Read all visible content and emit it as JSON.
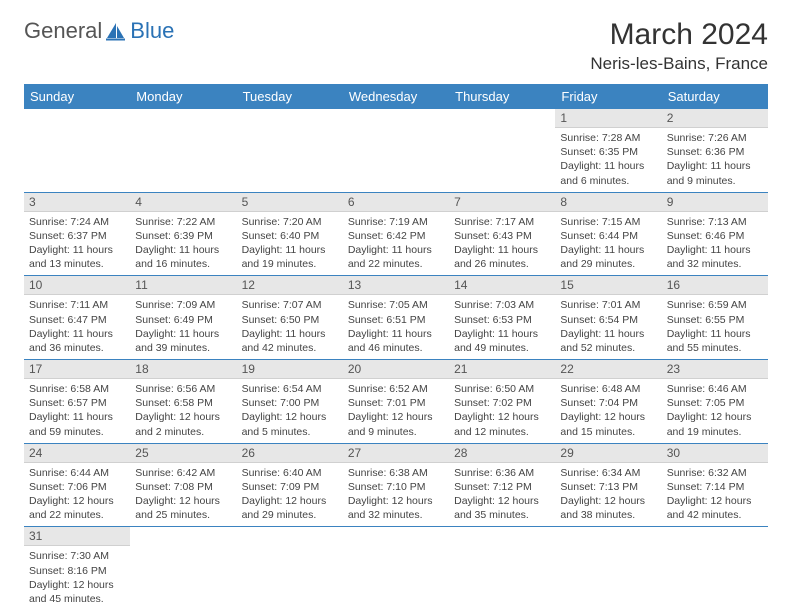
{
  "brand": {
    "part1": "General",
    "part2": "Blue"
  },
  "title": {
    "month": "March 2024",
    "location": "Neris-les-Bains, France"
  },
  "colors": {
    "header_bg": "#3b83c0",
    "row_border": "#3b83c0",
    "daynum_bg": "#e7e7e7"
  },
  "day_headers": [
    "Sunday",
    "Monday",
    "Tuesday",
    "Wednesday",
    "Thursday",
    "Friday",
    "Saturday"
  ],
  "weeks": [
    [
      null,
      null,
      null,
      null,
      null,
      {
        "n": "1",
        "sunrise": "7:28 AM",
        "sunset": "6:35 PM",
        "daylight": "11 hours and 6 minutes."
      },
      {
        "n": "2",
        "sunrise": "7:26 AM",
        "sunset": "6:36 PM",
        "daylight": "11 hours and 9 minutes."
      }
    ],
    [
      {
        "n": "3",
        "sunrise": "7:24 AM",
        "sunset": "6:37 PM",
        "daylight": "11 hours and 13 minutes."
      },
      {
        "n": "4",
        "sunrise": "7:22 AM",
        "sunset": "6:39 PM",
        "daylight": "11 hours and 16 minutes."
      },
      {
        "n": "5",
        "sunrise": "7:20 AM",
        "sunset": "6:40 PM",
        "daylight": "11 hours and 19 minutes."
      },
      {
        "n": "6",
        "sunrise": "7:19 AM",
        "sunset": "6:42 PM",
        "daylight": "11 hours and 22 minutes."
      },
      {
        "n": "7",
        "sunrise": "7:17 AM",
        "sunset": "6:43 PM",
        "daylight": "11 hours and 26 minutes."
      },
      {
        "n": "8",
        "sunrise": "7:15 AM",
        "sunset": "6:44 PM",
        "daylight": "11 hours and 29 minutes."
      },
      {
        "n": "9",
        "sunrise": "7:13 AM",
        "sunset": "6:46 PM",
        "daylight": "11 hours and 32 minutes."
      }
    ],
    [
      {
        "n": "10",
        "sunrise": "7:11 AM",
        "sunset": "6:47 PM",
        "daylight": "11 hours and 36 minutes."
      },
      {
        "n": "11",
        "sunrise": "7:09 AM",
        "sunset": "6:49 PM",
        "daylight": "11 hours and 39 minutes."
      },
      {
        "n": "12",
        "sunrise": "7:07 AM",
        "sunset": "6:50 PM",
        "daylight": "11 hours and 42 minutes."
      },
      {
        "n": "13",
        "sunrise": "7:05 AM",
        "sunset": "6:51 PM",
        "daylight": "11 hours and 46 minutes."
      },
      {
        "n": "14",
        "sunrise": "7:03 AM",
        "sunset": "6:53 PM",
        "daylight": "11 hours and 49 minutes."
      },
      {
        "n": "15",
        "sunrise": "7:01 AM",
        "sunset": "6:54 PM",
        "daylight": "11 hours and 52 minutes."
      },
      {
        "n": "16",
        "sunrise": "6:59 AM",
        "sunset": "6:55 PM",
        "daylight": "11 hours and 55 minutes."
      }
    ],
    [
      {
        "n": "17",
        "sunrise": "6:58 AM",
        "sunset": "6:57 PM",
        "daylight": "11 hours and 59 minutes."
      },
      {
        "n": "18",
        "sunrise": "6:56 AM",
        "sunset": "6:58 PM",
        "daylight": "12 hours and 2 minutes."
      },
      {
        "n": "19",
        "sunrise": "6:54 AM",
        "sunset": "7:00 PM",
        "daylight": "12 hours and 5 minutes."
      },
      {
        "n": "20",
        "sunrise": "6:52 AM",
        "sunset": "7:01 PM",
        "daylight": "12 hours and 9 minutes."
      },
      {
        "n": "21",
        "sunrise": "6:50 AM",
        "sunset": "7:02 PM",
        "daylight": "12 hours and 12 minutes."
      },
      {
        "n": "22",
        "sunrise": "6:48 AM",
        "sunset": "7:04 PM",
        "daylight": "12 hours and 15 minutes."
      },
      {
        "n": "23",
        "sunrise": "6:46 AM",
        "sunset": "7:05 PM",
        "daylight": "12 hours and 19 minutes."
      }
    ],
    [
      {
        "n": "24",
        "sunrise": "6:44 AM",
        "sunset": "7:06 PM",
        "daylight": "12 hours and 22 minutes."
      },
      {
        "n": "25",
        "sunrise": "6:42 AM",
        "sunset": "7:08 PM",
        "daylight": "12 hours and 25 minutes."
      },
      {
        "n": "26",
        "sunrise": "6:40 AM",
        "sunset": "7:09 PM",
        "daylight": "12 hours and 29 minutes."
      },
      {
        "n": "27",
        "sunrise": "6:38 AM",
        "sunset": "7:10 PM",
        "daylight": "12 hours and 32 minutes."
      },
      {
        "n": "28",
        "sunrise": "6:36 AM",
        "sunset": "7:12 PM",
        "daylight": "12 hours and 35 minutes."
      },
      {
        "n": "29",
        "sunrise": "6:34 AM",
        "sunset": "7:13 PM",
        "daylight": "12 hours and 38 minutes."
      },
      {
        "n": "30",
        "sunrise": "6:32 AM",
        "sunset": "7:14 PM",
        "daylight": "12 hours and 42 minutes."
      }
    ],
    [
      {
        "n": "31",
        "sunrise": "7:30 AM",
        "sunset": "8:16 PM",
        "daylight": "12 hours and 45 minutes."
      },
      null,
      null,
      null,
      null,
      null,
      null
    ]
  ],
  "labels": {
    "sunrise": "Sunrise:",
    "sunset": "Sunset:",
    "daylight": "Daylight:"
  }
}
